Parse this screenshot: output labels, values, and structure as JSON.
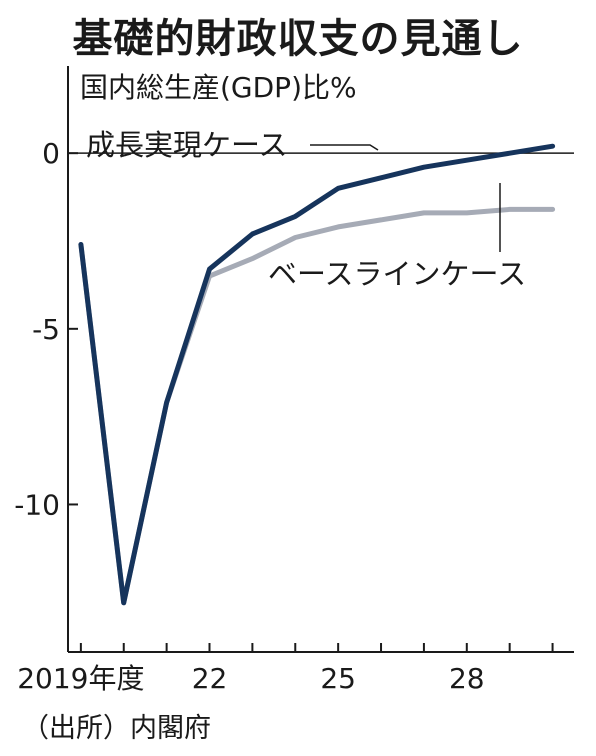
{
  "chart_data": {
    "type": "line",
    "title": "基礎的財政収支の見通し",
    "ylabel": "国内総生産(GDP)比%",
    "source": "（出所）内閣府",
    "x": [
      2019,
      2020,
      2021,
      2022,
      2023,
      2024,
      2025,
      2026,
      2027,
      2028,
      2029,
      2030
    ],
    "x_tick_labels": [
      {
        "x": 2019,
        "label": "2019年度"
      },
      {
        "x": 2022,
        "label": "22"
      },
      {
        "x": 2025,
        "label": "25"
      },
      {
        "x": 2028,
        "label": "28"
      }
    ],
    "y_ticks": [
      {
        "y": 0,
        "label": "0"
      },
      {
        "y": -5,
        "label": "-5"
      },
      {
        "y": -10,
        "label": "-10"
      }
    ],
    "xlim": [
      2018.7,
      2030.5
    ],
    "ylim": [
      -14.2,
      1.4
    ],
    "series": [
      {
        "name": "成長実現ケース",
        "color": "#16345c",
        "values": [
          -2.6,
          -12.8,
          -7.1,
          -3.3,
          -2.3,
          -1.8,
          -1.0,
          -0.7,
          -0.4,
          -0.2,
          0.0,
          0.2
        ]
      },
      {
        "name": "ベースラインケース",
        "color": "#a6abb6",
        "values": [
          -2.6,
          -12.8,
          -7.1,
          -3.5,
          -3.0,
          -2.4,
          -2.1,
          -1.9,
          -1.7,
          -1.7,
          -1.6,
          -1.6
        ]
      }
    ],
    "grid": false,
    "legend": "inline-annotations"
  }
}
